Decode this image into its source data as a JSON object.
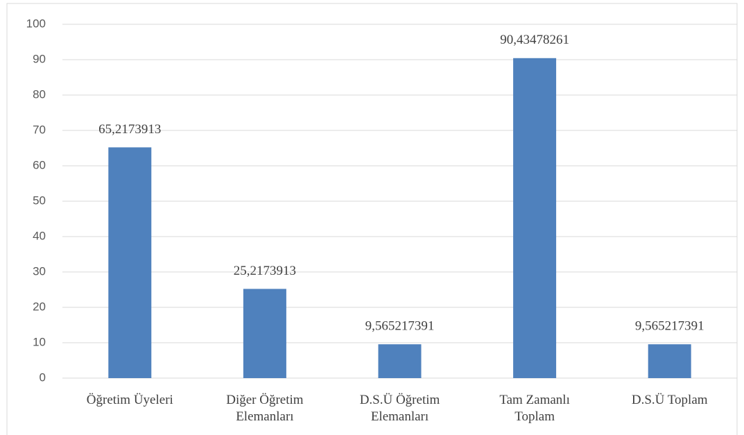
{
  "chart_data": {
    "type": "bar",
    "categories": [
      "Öğretim Üyeleri",
      "Diğer Öğretim Elemanları",
      "D.S.Ü Öğretim Elemanları",
      "Tam Zamanlı Toplam",
      "D.S.Ü Toplam"
    ],
    "values": [
      65.2173913,
      25.2173913,
      9.565217391,
      90.43478261,
      9.565217391
    ],
    "value_labels": [
      "65,2173913",
      "25,2173913",
      "9,565217391",
      "90,43478261",
      "9,565217391"
    ],
    "color": "#4f81bd",
    "ylim": [
      0,
      100
    ],
    "yticks": [
      0,
      10,
      20,
      30,
      40,
      50,
      60,
      70,
      80,
      90,
      100
    ],
    "grid": true
  }
}
